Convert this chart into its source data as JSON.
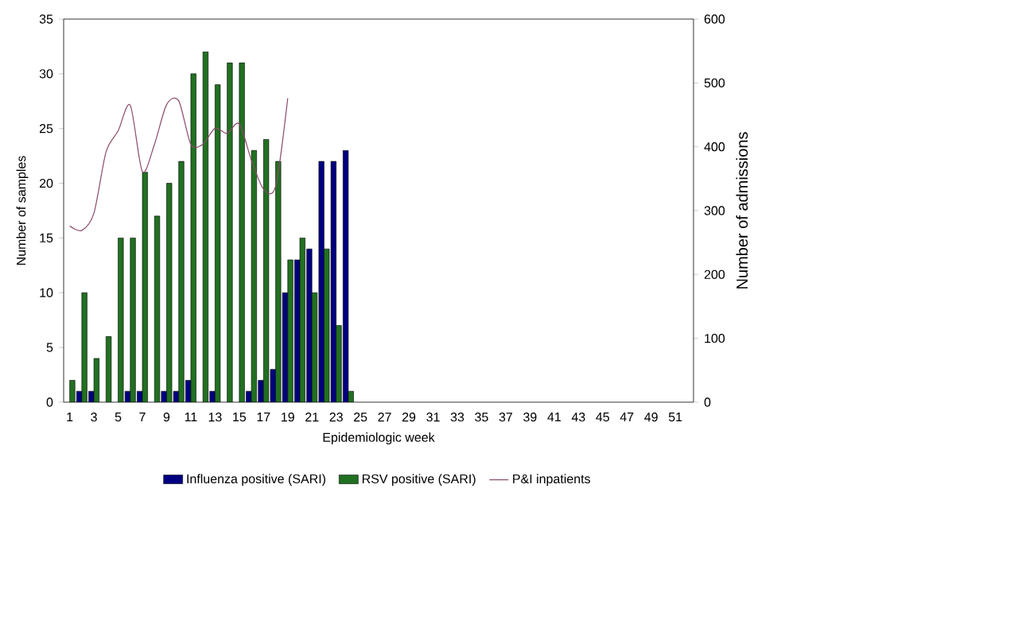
{
  "chart_data": {
    "type": "bar",
    "xlabel": "Epidemiologic week",
    "ylabel": "Number of samples",
    "y2label": "Number of admissions",
    "categories": [
      "1",
      null,
      "3",
      null,
      "5",
      null,
      "7",
      null,
      "9",
      null,
      "11",
      null,
      "13",
      null,
      "15",
      null,
      "17",
      null,
      "19",
      null,
      "21",
      null,
      "23",
      null,
      "25",
      null,
      "27",
      null,
      "29",
      null,
      "31",
      null,
      "33",
      null,
      "35",
      null,
      "37",
      null,
      "39",
      null,
      "41",
      null,
      "43",
      null,
      "45",
      null,
      "47",
      null,
      "49",
      null,
      "51",
      null
    ],
    "series": [
      {
        "name": "Influenza positive (SARI)",
        "color": "#000080",
        "values": [
          null,
          1,
          1,
          null,
          null,
          1,
          1,
          null,
          1,
          1,
          2,
          null,
          1,
          null,
          null,
          1,
          2,
          3,
          10,
          13,
          14,
          22,
          22,
          23,
          null,
          null,
          null,
          null,
          null,
          null,
          null,
          null,
          null,
          null,
          null,
          null,
          null,
          null,
          null,
          null,
          null,
          null,
          null,
          null,
          null,
          null,
          null,
          null,
          null,
          null,
          null,
          null
        ]
      },
      {
        "name": "RSV positive (SARI)",
        "color": "#217021",
        "values": [
          2,
          10,
          4,
          6,
          15,
          15,
          21,
          17,
          20,
          22,
          30,
          32,
          29,
          31,
          31,
          23,
          24,
          22,
          13,
          15,
          10,
          14,
          7,
          1,
          null,
          null,
          null,
          null,
          null,
          null,
          null,
          null,
          null,
          null,
          null,
          null,
          null,
          null,
          null,
          null,
          null,
          null,
          null,
          null,
          null,
          null,
          null,
          null,
          null,
          null,
          null,
          null
        ]
      },
      {
        "name": "P&I inpatients",
        "type": "line",
        "axis": "y2",
        "color": "#8b4a6b",
        "values": [
          276,
          269,
          296,
          392,
          425,
          465,
          361,
          404,
          466,
          472,
          404,
          404,
          429,
          421,
          436,
          379,
          334,
          338,
          476,
          null,
          null,
          null,
          null,
          null,
          null,
          null,
          null,
          null,
          null,
          null,
          null,
          null,
          null,
          null,
          null,
          null,
          null,
          null,
          null,
          null,
          null,
          null,
          null,
          null,
          null,
          null,
          null,
          null,
          null,
          null,
          null,
          null
        ]
      }
    ],
    "ylim": [
      0,
      35
    ],
    "yticks": [
      0,
      5,
      10,
      15,
      20,
      25,
      30,
      35
    ],
    "y2lim": [
      0,
      600
    ],
    "y2ticks": [
      0,
      100,
      200,
      300,
      400,
      500,
      600
    ],
    "legend": "bottom"
  }
}
